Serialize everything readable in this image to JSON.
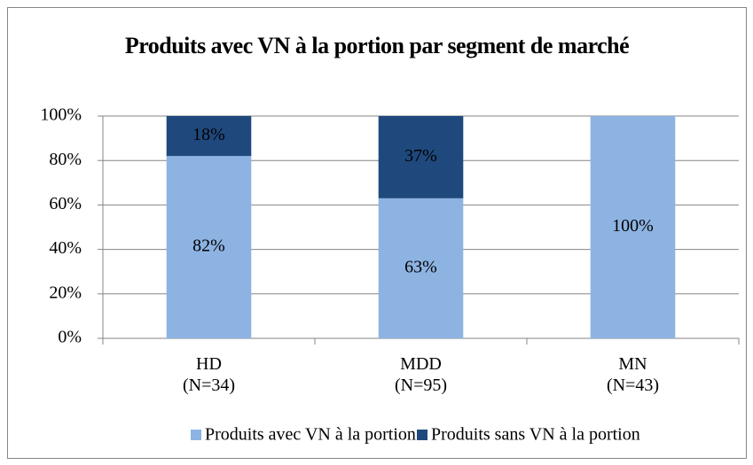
{
  "chart_data": {
    "type": "stacked_bar",
    "title": "Produits avec VN à la portion par segment de marché",
    "categories": [
      "HD\n(N=34)",
      "MDD\n(N=95)",
      "MN\n(N=43)"
    ],
    "series": [
      {
        "name": "Produits avec VN à la portion",
        "color": "#8db3e2",
        "values": [
          82,
          63,
          100
        ],
        "value_labels": [
          "82%",
          "63%",
          "100%"
        ]
      },
      {
        "name": "Produits sans VN à la portion",
        "color": "#1f497d",
        "values": [
          18,
          37,
          null
        ],
        "value_labels": [
          "18%",
          "37%",
          null
        ]
      }
    ],
    "ylim": [
      0,
      100
    ],
    "yticks": [
      {
        "value": 0,
        "label": "0%"
      },
      {
        "value": 20,
        "label": "20%"
      },
      {
        "value": 40,
        "label": "40%"
      },
      {
        "value": 60,
        "label": "60%"
      },
      {
        "value": 80,
        "label": "80%"
      },
      {
        "value": 100,
        "label": "100%"
      }
    ],
    "grid": true,
    "legend": "bottom"
  }
}
